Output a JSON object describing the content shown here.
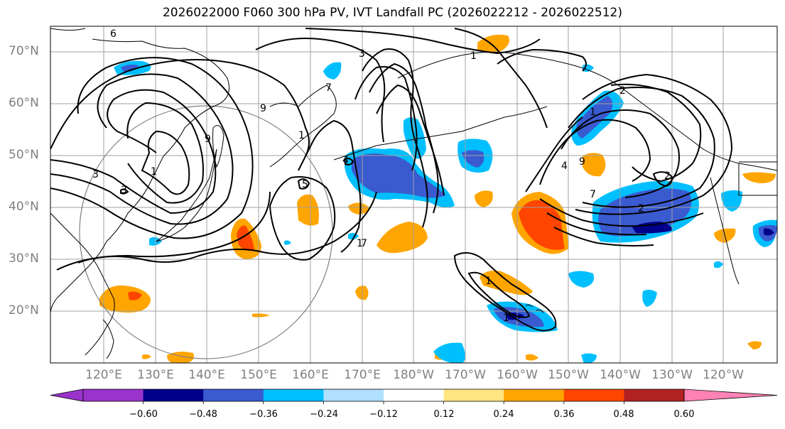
{
  "title": "2026022000 F060 300 hPa PV, IVT Landfall PC (2026022212 - 2026022512)",
  "lat_labels": [
    "70°N",
    "60°N",
    "50°N",
    "40°N",
    "30°N",
    "20°N"
  ],
  "lon_labels": [
    "120°E",
    "130°E",
    "140°E",
    "150°E",
    "160°E",
    "170°E",
    "180°W",
    "170°W",
    "160°W",
    "150°W",
    "140°W",
    "130°W",
    "120°W"
  ],
  "colorbar": {
    "ticks": [
      "−0.60",
      "−0.48",
      "−0.36",
      "−0.24",
      "−0.12",
      "0.12",
      "0.24",
      "0.36",
      "0.48",
      "0.60"
    ],
    "colors": [
      "#9933cc",
      "#00008b",
      "#3a5bd0",
      "#00bfff",
      "#b0e0ff",
      "#ffffff",
      "#ffe680",
      "#ffa500",
      "#ff4500",
      "#b22222",
      "#ff82b4"
    ]
  },
  "contour_labels": [
    "6",
    "3",
    "1",
    "7",
    "9",
    "1",
    "2",
    "1",
    "4",
    "9",
    "1",
    "2",
    "7",
    "2",
    "5",
    "1",
    "7",
    "1",
    "1",
    "3",
    "3",
    "4",
    "9"
  ]
}
